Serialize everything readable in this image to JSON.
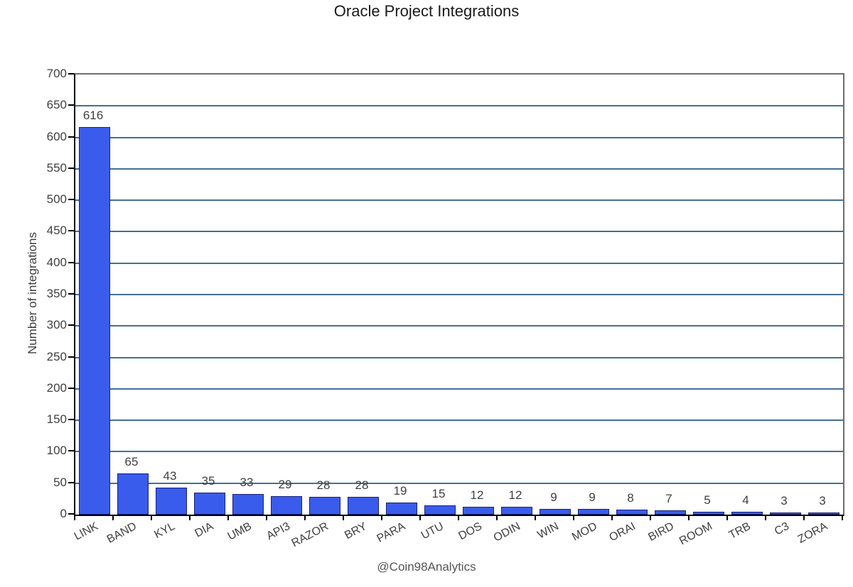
{
  "title": "Oracle Project Integrations",
  "footer": "@Coin98Analytics",
  "colors": {
    "bar_fill": "#3A5CEC",
    "bar_border": "#17207E",
    "gridline": "#466F94",
    "plot_border": "#6E6E6E",
    "axis": "#000000",
    "text": "#3F3F3F"
  },
  "chart_data": {
    "type": "bar",
    "title": "Oracle Project Integrations",
    "xlabel": "",
    "ylabel": "Number of integrations",
    "categories": [
      "LINK",
      "BAND",
      "KYL",
      "DIA",
      "UMB",
      "API3",
      "RAZOR",
      "BRY",
      "PARA",
      "UTU",
      "DOS",
      "ODIN",
      "WIN",
      "MOD",
      "ORAI",
      "BIRD",
      "ROOM",
      "TRB",
      "C3",
      "ZORA"
    ],
    "values": [
      616,
      65,
      43,
      35,
      33,
      29,
      28,
      28,
      19,
      15,
      12,
      12,
      9,
      9,
      8,
      7,
      5,
      4,
      3,
      3
    ],
    "ylim": [
      0,
      700
    ],
    "ytick_step": 50,
    "yticks": [
      0,
      50,
      100,
      150,
      200,
      250,
      300,
      350,
      400,
      450,
      500,
      550,
      600,
      650,
      700
    ],
    "grid": true,
    "legend_position": "none",
    "value_labels": true,
    "annotations": [
      "@Coin98Analytics"
    ]
  }
}
